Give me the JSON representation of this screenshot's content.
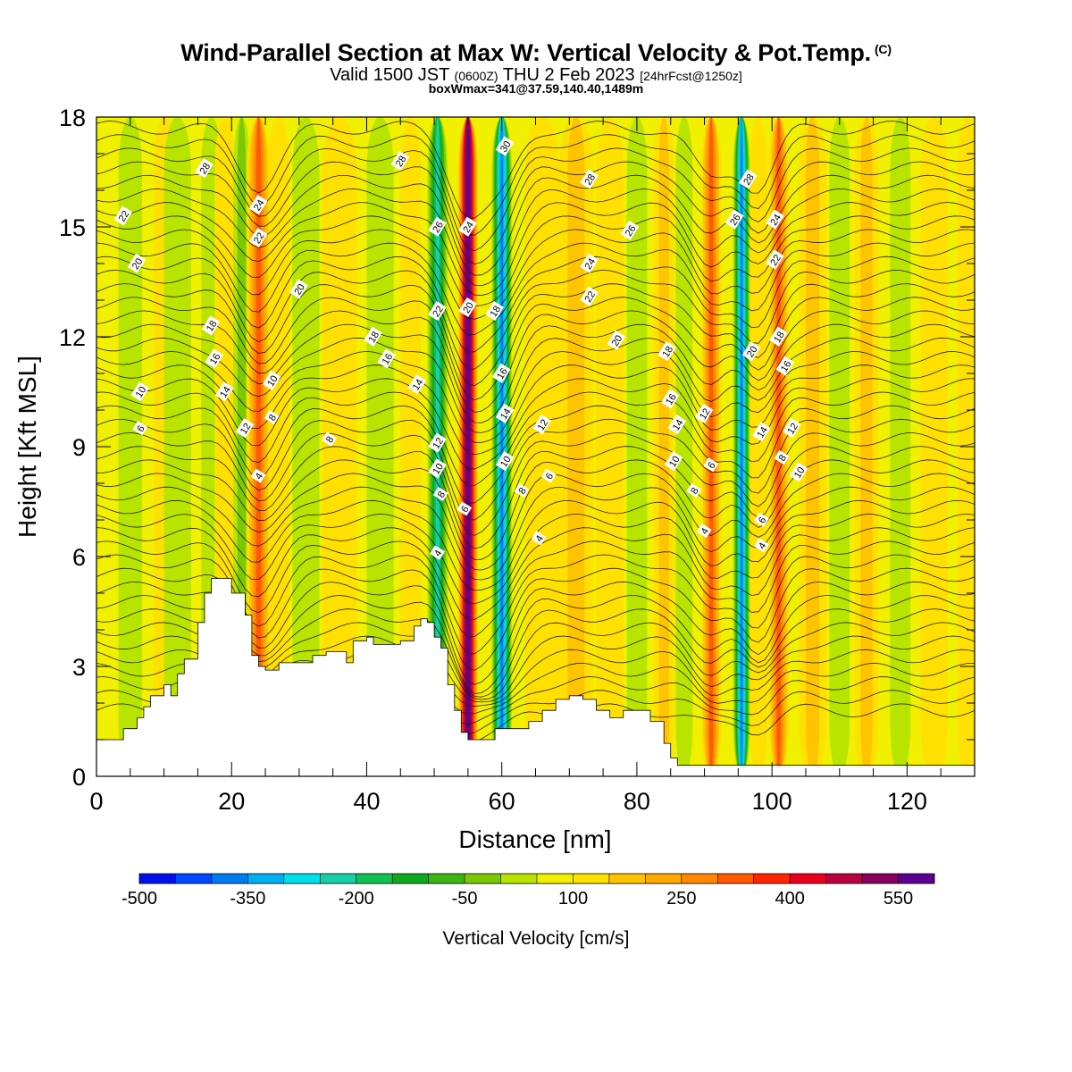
{
  "header": {
    "title": "Wind-Parallel Section at Max W: Vertical Velocity & Pot.Temp.",
    "title_mark": "(C)",
    "valid_prefix": "Valid 1500 JST",
    "valid_utc": "(0600Z)",
    "valid_date": "THU 2 Feb 2023",
    "forecast": "[24hrFcst@1250z]",
    "boxwmax": "boxWmax=341@37.59,140.40,1489m"
  },
  "chart_data": {
    "type": "heatmap",
    "xlabel": "Distance [nm]",
    "ylabel": "Height [Kft MSL]",
    "xlim": [
      0,
      130
    ],
    "ylim": [
      0,
      18
    ],
    "x_ticks": [
      "0",
      "20",
      "40",
      "60",
      "80",
      "100",
      "120"
    ],
    "y_ticks": [
      "0",
      "3",
      "6",
      "9",
      "12",
      "15",
      "18"
    ],
    "colorbar": {
      "label": "Vertical Velocity [cm/s]",
      "tick_labels": [
        "-500",
        "-350",
        "-200",
        "-50",
        "100",
        "250",
        "400",
        "550"
      ],
      "colors": [
        "#0010e8",
        "#0048ff",
        "#007cf0",
        "#00b0f0",
        "#00e0e8",
        "#18d0a8",
        "#10c050",
        "#0eaa1e",
        "#3cb414",
        "#7cc804",
        "#b8e400",
        "#f0f000",
        "#ffe000",
        "#ffc400",
        "#ffa800",
        "#ff8800",
        "#ff5a00",
        "#ff2400",
        "#e8001e",
        "#b80040",
        "#880060",
        "#5a0090"
      ]
    },
    "terrain": [
      [
        0,
        1
      ],
      [
        3,
        1
      ],
      [
        4,
        1.3
      ],
      [
        6,
        1.6
      ],
      [
        7,
        1.9
      ],
      [
        8,
        2.2
      ],
      [
        10,
        2.5
      ],
      [
        11,
        2.2
      ],
      [
        12,
        2.8
      ],
      [
        13,
        3.2
      ],
      [
        15,
        4.2
      ],
      [
        16,
        5
      ],
      [
        17,
        5.4
      ],
      [
        19,
        5.4
      ],
      [
        20,
        5
      ],
      [
        22,
        4.4
      ],
      [
        23,
        3.3
      ],
      [
        24,
        3
      ],
      [
        25,
        2.9
      ],
      [
        27,
        3.1
      ],
      [
        30,
        3.1
      ],
      [
        32,
        3.3
      ],
      [
        34,
        3.4
      ],
      [
        36,
        3.4
      ],
      [
        37,
        3.1
      ],
      [
        38,
        3.7
      ],
      [
        40,
        3.8
      ],
      [
        41,
        3.6
      ],
      [
        43,
        3.6
      ],
      [
        45,
        3.7
      ],
      [
        47,
        4.1
      ],
      [
        48,
        4.3
      ],
      [
        49,
        4.2
      ],
      [
        50,
        3.8
      ],
      [
        51,
        3.5
      ],
      [
        52,
        2.5
      ],
      [
        53,
        1.8
      ],
      [
        54,
        1.2
      ],
      [
        55,
        1.0
      ],
      [
        58,
        1.0
      ],
      [
        59,
        1.3
      ],
      [
        62,
        1.3
      ],
      [
        64,
        1.5
      ],
      [
        66,
        1.8
      ],
      [
        68,
        2.1
      ],
      [
        70,
        2.2
      ],
      [
        72,
        2.1
      ],
      [
        74,
        1.8
      ],
      [
        76,
        1.6
      ],
      [
        78,
        1.8
      ],
      [
        80,
        1.8
      ],
      [
        82,
        1.5
      ],
      [
        84,
        0.9
      ],
      [
        85,
        0.5
      ],
      [
        86,
        0.3
      ],
      [
        130,
        0.3
      ]
    ],
    "vertical_velocity_bands": [
      {
        "x": 5,
        "w": 3.5,
        "value": -40
      },
      {
        "x": 10,
        "w": 3,
        "value": 60
      },
      {
        "x": 12,
        "w": 4,
        "value": -30
      },
      {
        "x": 17,
        "w": 3,
        "value": -60
      },
      {
        "x": 19,
        "w": 3,
        "value": 60
      },
      {
        "x": 21.5,
        "w": 2.5,
        "value": -120
      },
      {
        "x": 24,
        "w": 3.5,
        "value": 250
      },
      {
        "x": 27,
        "w": 3,
        "value": 20
      },
      {
        "x": 31,
        "w": 4,
        "value": -70
      },
      {
        "x": 36,
        "w": 5,
        "value": 70
      },
      {
        "x": 42,
        "w": 4,
        "value": -30
      },
      {
        "x": 46.5,
        "w": 3,
        "value": 40
      },
      {
        "x": 50.5,
        "w": 3,
        "value": -330
      },
      {
        "x": 55,
        "w": 3,
        "value": 560
      },
      {
        "x": 60,
        "w": 3,
        "value": -480
      },
      {
        "x": 66,
        "w": 5,
        "value": 80
      },
      {
        "x": 71,
        "w": 5,
        "value": 140
      },
      {
        "x": 76,
        "w": 4,
        "value": 60
      },
      {
        "x": 80,
        "w": 3,
        "value": -30
      },
      {
        "x": 84,
        "w": 3,
        "value": 120
      },
      {
        "x": 87,
        "w": 2.5,
        "value": -70
      },
      {
        "x": 91,
        "w": 3,
        "value": 250
      },
      {
        "x": 95.5,
        "w": 2.5,
        "value": -470
      },
      {
        "x": 98,
        "w": 2.5,
        "value": 60
      },
      {
        "x": 101,
        "w": 3,
        "value": 250
      },
      {
        "x": 106,
        "w": 4,
        "value": 120
      },
      {
        "x": 110,
        "w": 3,
        "value": -40
      },
      {
        "x": 114,
        "w": 3.5,
        "value": 110
      },
      {
        "x": 119,
        "w": 3,
        "value": -50
      },
      {
        "x": 124,
        "w": 4,
        "value": 90
      },
      {
        "x": 129,
        "w": 3,
        "value": 60
      }
    ],
    "contour_labels": [
      {
        "text": "28",
        "x": 16,
        "y": 16.6
      },
      {
        "text": "22",
        "x": 4,
        "y": 15.3
      },
      {
        "text": "20",
        "x": 6,
        "y": 14.0
      },
      {
        "text": "24",
        "x": 24,
        "y": 15.6
      },
      {
        "text": "22",
        "x": 24,
        "y": 14.7
      },
      {
        "text": "20",
        "x": 30,
        "y": 13.3
      },
      {
        "text": "18",
        "x": 17,
        "y": 12.3
      },
      {
        "text": "16",
        "x": 17.5,
        "y": 11.4
      },
      {
        "text": "14",
        "x": 19,
        "y": 10.5
      },
      {
        "text": "10",
        "x": 6.5,
        "y": 10.5
      },
      {
        "text": "10",
        "x": 26,
        "y": 10.8
      },
      {
        "text": "6",
        "x": 6.5,
        "y": 9.5
      },
      {
        "text": "12",
        "x": 22,
        "y": 9.5
      },
      {
        "text": "8",
        "x": 26,
        "y": 9.8
      },
      {
        "text": "8",
        "x": 34.5,
        "y": 9.2
      },
      {
        "text": "4",
        "x": 24,
        "y": 8.2
      },
      {
        "text": "28",
        "x": 45,
        "y": 16.8
      },
      {
        "text": "26",
        "x": 50.5,
        "y": 15.0
      },
      {
        "text": "24",
        "x": 55,
        "y": 15.0
      },
      {
        "text": "22",
        "x": 50.5,
        "y": 12.7
      },
      {
        "text": "20",
        "x": 55,
        "y": 12.8
      },
      {
        "text": "18",
        "x": 41,
        "y": 12.0
      },
      {
        "text": "16",
        "x": 43,
        "y": 11.4
      },
      {
        "text": "14",
        "x": 47.5,
        "y": 10.7
      },
      {
        "text": "12",
        "x": 50.5,
        "y": 9.1
      },
      {
        "text": "10",
        "x": 50.5,
        "y": 8.4
      },
      {
        "text": "8",
        "x": 51,
        "y": 7.7
      },
      {
        "text": "6",
        "x": 54.5,
        "y": 7.3
      },
      {
        "text": "4",
        "x": 50.5,
        "y": 6.1
      },
      {
        "text": "30",
        "x": 60.5,
        "y": 17.2
      },
      {
        "text": "18",
        "x": 59,
        "y": 12.7
      },
      {
        "text": "16",
        "x": 60,
        "y": 11.0
      },
      {
        "text": "14",
        "x": 60.5,
        "y": 9.9
      },
      {
        "text": "10",
        "x": 60.5,
        "y": 8.6
      },
      {
        "text": "8",
        "x": 63,
        "y": 7.8
      },
      {
        "text": "6",
        "x": 67,
        "y": 8.2
      },
      {
        "text": "12",
        "x": 66,
        "y": 9.6
      },
      {
        "text": "4",
        "x": 65.5,
        "y": 6.5
      },
      {
        "text": "28",
        "x": 73,
        "y": 16.3
      },
      {
        "text": "26",
        "x": 79,
        "y": 14.9
      },
      {
        "text": "24",
        "x": 73,
        "y": 14.0
      },
      {
        "text": "22",
        "x": 73,
        "y": 13.1
      },
      {
        "text": "20",
        "x": 77,
        "y": 11.9
      },
      {
        "text": "18",
        "x": 84.5,
        "y": 11.6
      },
      {
        "text": "16",
        "x": 85,
        "y": 10.3
      },
      {
        "text": "14",
        "x": 86,
        "y": 9.6
      },
      {
        "text": "12",
        "x": 90,
        "y": 9.9
      },
      {
        "text": "10",
        "x": 85.5,
        "y": 8.6
      },
      {
        "text": "8",
        "x": 88.5,
        "y": 7.8
      },
      {
        "text": "6",
        "x": 91,
        "y": 8.5
      },
      {
        "text": "4",
        "x": 90,
        "y": 6.7
      },
      {
        "text": "28",
        "x": 96.5,
        "y": 16.3
      },
      {
        "text": "26",
        "x": 94.5,
        "y": 15.2
      },
      {
        "text": "24",
        "x": 100.5,
        "y": 15.2
      },
      {
        "text": "22",
        "x": 100.5,
        "y": 14.1
      },
      {
        "text": "20",
        "x": 97,
        "y": 11.6
      },
      {
        "text": "18",
        "x": 101,
        "y": 12.0
      },
      {
        "text": "16",
        "x": 102,
        "y": 11.2
      },
      {
        "text": "14",
        "x": 98.5,
        "y": 9.4
      },
      {
        "text": "12",
        "x": 103,
        "y": 9.5
      },
      {
        "text": "10",
        "x": 104,
        "y": 8.3
      },
      {
        "text": "8",
        "x": 101.5,
        "y": 8.7
      },
      {
        "text": "6",
        "x": 98.5,
        "y": 7.0
      },
      {
        "text": "4",
        "x": 98.5,
        "y": 6.3
      }
    ]
  }
}
